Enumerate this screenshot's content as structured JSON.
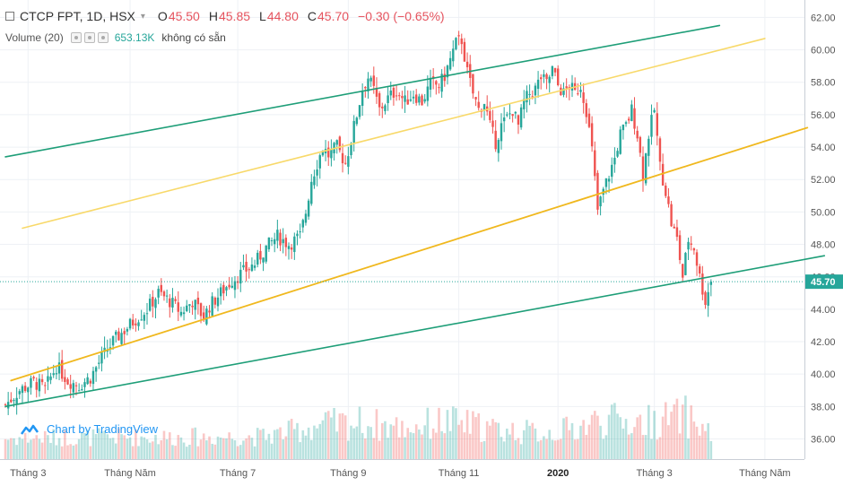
{
  "header": {
    "symbol_line": "CTCP FPT, 1D, HSX",
    "open_label": "O",
    "open": "45.50",
    "high_label": "H",
    "high": "45.85",
    "low_label": "L",
    "low": "44.80",
    "close_label": "C",
    "close": "45.70",
    "change": "−0.30 (−0.65%)",
    "volume_title": "Volume (20)",
    "volume_value": "653.13K",
    "volume_ma": "không có sẵn"
  },
  "credit": "Chart by TradingView",
  "colors": {
    "up": "#26a69a",
    "down": "#ef5350",
    "channel_green": "#1e9e78",
    "channel_yellow_light": "#f8d96a",
    "channel_yellow": "#f0b81e",
    "price_label_bg": "#26a69a"
  },
  "chart_data": {
    "type": "candlestick",
    "symbol": "CTCP FPT",
    "interval": "1D",
    "exchange": "HSX",
    "y_ticks": [
      "36.00",
      "38.00",
      "40.00",
      "42.00",
      "44.00",
      "46.00",
      "48.00",
      "50.00",
      "52.00",
      "54.00",
      "56.00",
      "58.00",
      "60.00",
      "62.00"
    ],
    "y_range": [
      35.1,
      62.3
    ],
    "last_price": "45.70",
    "x_labels": [
      "Tháng 3",
      "Tháng Năm",
      "Tháng 7",
      "Tháng 9",
      "Tháng 11",
      "2020",
      "Tháng 3",
      "Tháng Năm"
    ],
    "x_label_bars": [
      8,
      44,
      82,
      121,
      160,
      195,
      229,
      268
    ],
    "bars_total": 289,
    "price_path": [
      [
        0,
        38.1
      ],
      [
        5,
        39.0
      ],
      [
        10,
        39.5
      ],
      [
        14,
        39.1
      ],
      [
        18,
        40.5
      ],
      [
        22,
        39.6
      ],
      [
        26,
        39.3
      ],
      [
        30,
        39.8
      ],
      [
        34,
        41.0
      ],
      [
        38,
        42.0
      ],
      [
        42,
        42.7
      ],
      [
        46,
        43.4
      ],
      [
        50,
        44.0
      ],
      [
        54,
        45.0
      ],
      [
        58,
        44.5
      ],
      [
        62,
        43.8
      ],
      [
        66,
        44.5
      ],
      [
        70,
        43.5
      ],
      [
        72,
        44.2
      ],
      [
        76,
        45.0
      ],
      [
        80,
        45.8
      ],
      [
        84,
        46.3
      ],
      [
        88,
        46.8
      ],
      [
        92,
        47.8
      ],
      [
        96,
        48.5
      ],
      [
        100,
        48.0
      ],
      [
        104,
        48.5
      ],
      [
        106,
        50.0
      ],
      [
        108,
        52.0
      ],
      [
        110,
        53.0
      ],
      [
        112,
        54.0
      ],
      [
        114,
        53.5
      ],
      [
        117,
        54.0
      ],
      [
        120,
        53.0
      ],
      [
        124,
        56.0
      ],
      [
        126,
        57.6
      ],
      [
        128,
        58.3
      ],
      [
        130,
        57.5
      ],
      [
        132,
        56.3
      ],
      [
        135,
        57.0
      ],
      [
        138,
        57.5
      ],
      [
        141,
        56.8
      ],
      [
        144,
        57.3
      ],
      [
        147,
        56.8
      ],
      [
        150,
        57.9
      ],
      [
        153,
        57.8
      ],
      [
        155,
        58.4
      ],
      [
        157,
        59.4
      ],
      [
        159,
        60.4
      ],
      [
        161,
        60.6
      ],
      [
        163,
        58.6
      ],
      [
        165,
        57.3
      ],
      [
        167,
        56.3
      ],
      [
        169,
        56.8
      ],
      [
        171,
        55.3
      ],
      [
        173,
        54.3
      ],
      [
        175,
        55.3
      ],
      [
        177,
        55.8
      ],
      [
        179,
        56.3
      ],
      [
        181,
        55.3
      ],
      [
        183,
        56.8
      ],
      [
        185,
        57.3
      ],
      [
        187,
        57.6
      ],
      [
        189,
        58.3
      ],
      [
        191,
        57.9
      ],
      [
        193,
        58.8
      ],
      [
        195,
        57.8
      ],
      [
        197,
        57.3
      ],
      [
        199,
        57.8
      ],
      [
        201,
        57.3
      ],
      [
        203,
        57.8
      ],
      [
        205,
        56.3
      ],
      [
        207,
        53.8
      ],
      [
        209,
        50.1
      ],
      [
        211,
        51.3
      ],
      [
        213,
        52.3
      ],
      [
        215,
        53.3
      ],
      [
        217,
        54.8
      ],
      [
        219,
        55.3
      ],
      [
        221,
        56.3
      ],
      [
        223,
        54.8
      ],
      [
        225,
        52.3
      ],
      [
        227,
        54.8
      ],
      [
        229,
        56.3
      ],
      [
        231,
        52.8
      ],
      [
        233,
        51.3
      ],
      [
        235,
        49.3
      ],
      [
        237,
        48.3
      ],
      [
        239,
        46.0
      ],
      [
        241,
        48.3
      ],
      [
        243,
        47.8
      ],
      [
        245,
        46.0
      ],
      [
        247,
        44.5
      ],
      [
        249,
        45.7
      ]
    ],
    "volume_profile": [
      [
        0,
        0.3
      ],
      [
        30,
        0.32
      ],
      [
        60,
        0.32
      ],
      [
        90,
        0.33
      ],
      [
        100,
        0.42
      ],
      [
        110,
        0.55
      ],
      [
        125,
        0.6
      ],
      [
        140,
        0.5
      ],
      [
        155,
        0.62
      ],
      [
        165,
        0.55
      ],
      [
        175,
        0.45
      ],
      [
        190,
        0.4
      ],
      [
        200,
        0.48
      ],
      [
        210,
        0.65
      ],
      [
        225,
        0.6
      ],
      [
        240,
        0.72
      ],
      [
        249,
        0.4
      ]
    ],
    "trend_lines": [
      {
        "name": "channel-upper-green",
        "p1": [
          0,
          53.4
        ],
        "p2": [
          252,
          61.5
        ]
      },
      {
        "name": "channel-lower-green",
        "p1": [
          0,
          38.0
        ],
        "p2": [
          289,
          47.3
        ]
      },
      {
        "name": "channel-upper-yellow",
        "p1": [
          6,
          49.0
        ],
        "p2": [
          268,
          60.7
        ]
      },
      {
        "name": "channel-lower-yellow",
        "p1": [
          2,
          39.6
        ],
        "p2": [
          283,
          55.2
        ]
      }
    ]
  }
}
